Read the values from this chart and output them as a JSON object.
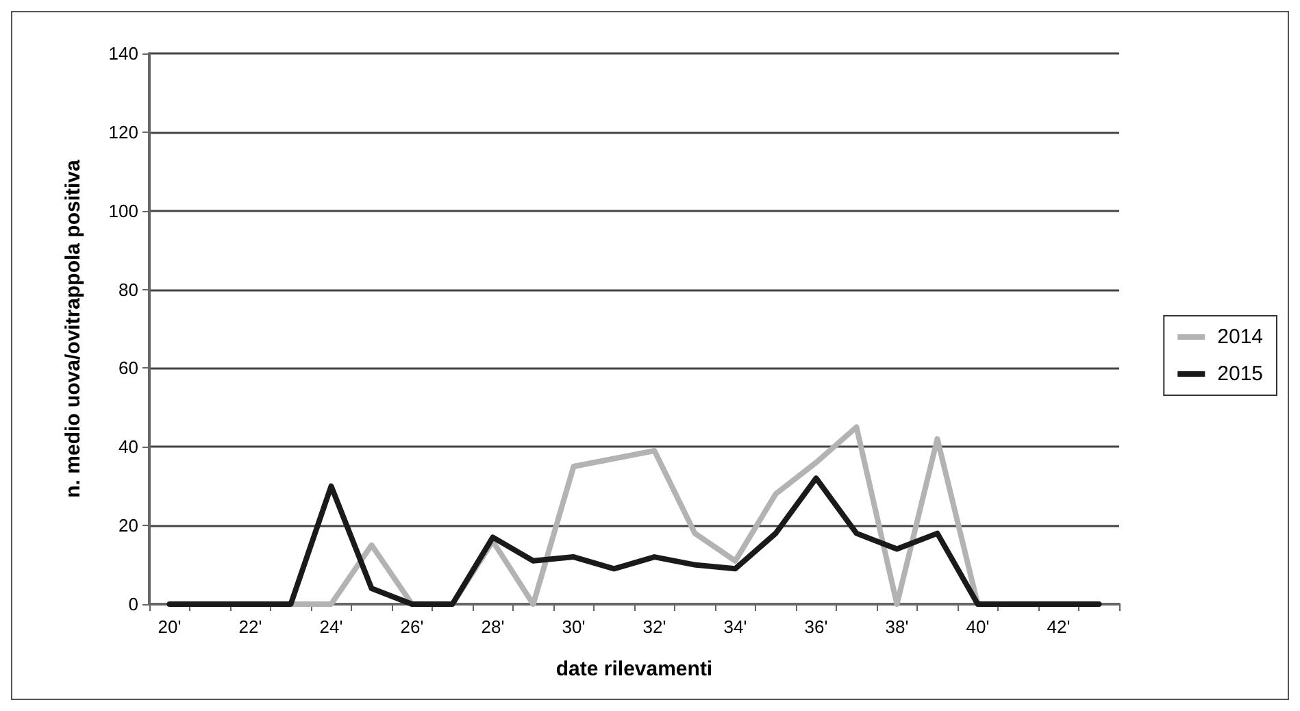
{
  "chart_data": {
    "type": "line",
    "xlabel": "date rilevamenti",
    "ylabel": "n. medio uova/ovitrappola positiva",
    "categories": [
      "20'",
      null,
      "22'",
      null,
      "24'",
      null,
      "26'",
      null,
      "28'",
      null,
      "30'",
      null,
      "32'",
      null,
      "34'",
      null,
      "36'",
      null,
      "38'",
      null,
      "40'",
      null,
      "42'",
      null
    ],
    "series": [
      {
        "name": "2014",
        "color": "#b3b3b3",
        "values": [
          null,
          null,
          null,
          0,
          0,
          15,
          0,
          0,
          16,
          0,
          35,
          37,
          39,
          18,
          11,
          28,
          36,
          45,
          0,
          42,
          0,
          null,
          null,
          null
        ]
      },
      {
        "name": "2015",
        "color": "#1a1a1a",
        "values": [
          0,
          0,
          0,
          0,
          30,
          4,
          0,
          0,
          17,
          11,
          12,
          9,
          12,
          10,
          9,
          18,
          32,
          18,
          14,
          18,
          0,
          0,
          0,
          0
        ]
      }
    ],
    "ylim": [
      0,
      140
    ],
    "yticks": [
      0,
      20,
      40,
      60,
      80,
      100,
      120,
      140
    ],
    "grid": "y",
    "legend": "right",
    "marker": "none",
    "line_style": "solid"
  }
}
